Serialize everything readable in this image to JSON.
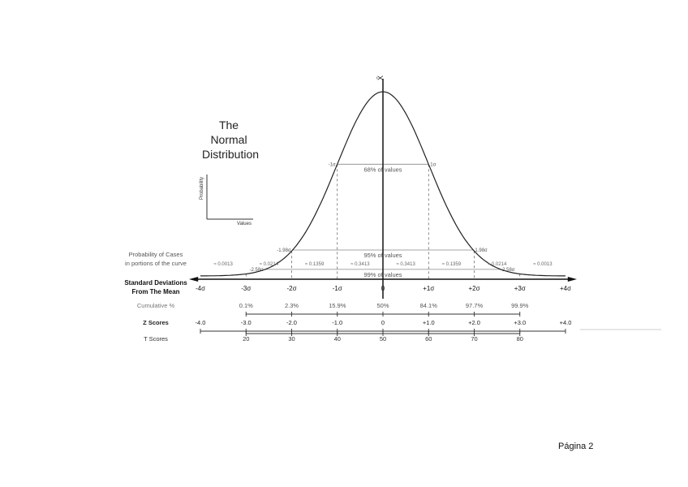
{
  "figure": {
    "title_lines": [
      "The",
      "Normal",
      "Distribution"
    ],
    "inset": {
      "ylabel": "Probability",
      "xlabel": "Values"
    },
    "mean_symbol": "X̄",
    "ranges": [
      {
        "left_label": "-1σ",
        "right_label": "1σ",
        "text": "68% of values",
        "sigma": 1.0
      },
      {
        "left_label": "-1.98σ",
        "right_label": "1.98σ",
        "text": "95% of values",
        "sigma": 1.98
      },
      {
        "left_label": "-2.58σ",
        "right_label": "2.58σ",
        "text": "99% of values",
        "sigma": 2.58
      }
    ],
    "probability_label": [
      "Probability of Cases",
      "in portions of the curve"
    ],
    "probabilities": [
      "≈ 0.0013",
      "≈ 0.0214",
      "≈ 0.1359",
      "≈ 0.3413",
      "≈ 0.3413",
      "≈ 0.1359",
      "≈ 0.0214",
      "≈ 0.0013"
    ],
    "sd_label": [
      "Standard Deviations",
      "From The Mean"
    ],
    "sd_ticks": [
      "-4σ",
      "-3σ",
      "-2σ",
      "-1σ",
      "0",
      "+1σ",
      "+2σ",
      "+3σ",
      "+4σ"
    ],
    "cumulative_label": "Cumulative %",
    "cumulative": [
      "0.1%",
      "2.3%",
      "15.9%",
      "50%",
      "84.1%",
      "97.7%",
      "99.9%"
    ],
    "z_label": "Z Scores",
    "z_scores": [
      "-4.0",
      "-3.0",
      "-2.0",
      "-1.0",
      "0",
      "+1.0",
      "+2.0",
      "+3.0",
      "+4.0"
    ],
    "t_label": "T Scores",
    "t_scores": [
      "20",
      "30",
      "40",
      "50",
      "60",
      "70",
      "80"
    ]
  },
  "footer": {
    "page": "Página 2"
  }
}
